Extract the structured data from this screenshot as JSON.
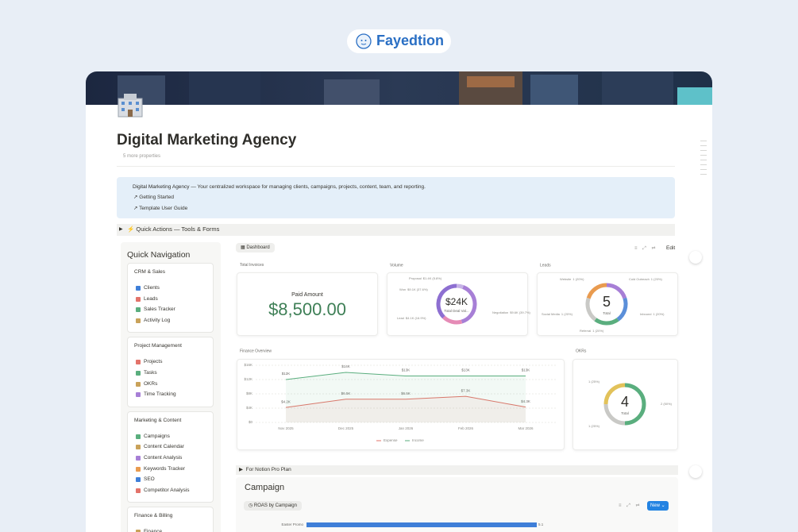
{
  "brand": "Fayedtion",
  "page": {
    "title": "Digital Marketing Agency",
    "properties": "5 more properties"
  },
  "callout": {
    "title": "Digital Marketing Agency",
    "description": "— Your centralized workspace for managing clients, campaigns, projects, content, team, and reporting.",
    "links": [
      "Getting Started",
      "Template User Guide"
    ]
  },
  "quick_actions": "⚡ Quick Actions — Tools & Forms",
  "navigation": {
    "title": "Quick Navigation",
    "groups": [
      {
        "title": "CRM & Sales",
        "items": [
          "Clients",
          "Leads",
          "Sales Tracker",
          "Activity Log"
        ]
      },
      {
        "title": "Project Management",
        "items": [
          "Projects",
          "Tasks",
          "OKRs",
          "Time Tracking"
        ]
      },
      {
        "title": "Marketing & Content",
        "items": [
          "Campaigns",
          "Content Calendar",
          "Content Analysis",
          "Keywords Tracker",
          "SEO",
          "Competitor Analysis"
        ]
      },
      {
        "title": "Finance & Billing",
        "items": [
          "Finance"
        ]
      }
    ]
  },
  "dashboard": {
    "tab": "Dashboard",
    "edit": "Edit",
    "total_invoices": {
      "title": "Total Invoices",
      "caption": "Paid Amount",
      "amount": "$8,500.00"
    }
  },
  "pro_toggle": "For Notion Pro Plan",
  "campaign": {
    "title": "Campaign",
    "tab": "ROAS by Campaign",
    "new_button": "New"
  },
  "chart_data": [
    {
      "type": "donut",
      "title": "Volume",
      "center_label": "$24K",
      "center_caption": "Total Deal Val...",
      "categories": [
        "Proposal",
        "Negotiation",
        "Lead",
        "Won"
      ],
      "values": [
        1400,
        9600,
        4100,
        9100
      ],
      "value_labels": [
        "$1.4K (5.8%)",
        "$9.6K (39.7%)",
        "$4.1K (16.9%)",
        "$9.1K (37.6%)"
      ],
      "colors": [
        "#c6b3e6",
        "#a77fd6",
        "#e58bb6",
        "#8d6fd1"
      ]
    },
    {
      "type": "donut",
      "title": "Leads",
      "center_label": "5",
      "center_caption": "Total",
      "categories": [
        "Website",
        "Cold Outreach",
        "Inbound",
        "Referral",
        "Social Media"
      ],
      "values": [
        1,
        1,
        1,
        1,
        1
      ],
      "value_labels": [
        "1 (20%)",
        "1 (20%)",
        "1 (20%)",
        "1 (20%)",
        "1 (20%)"
      ],
      "colors": [
        "#a77fd6",
        "#5b8fd9",
        "#5aae7e",
        "#c9c9c6",
        "#e99b4f"
      ]
    },
    {
      "type": "line",
      "title": "Finance Overview",
      "categories": [
        "Nov 2025",
        "Dec 2025",
        "Jan 2026",
        "Feb 2026",
        "Mar 2026"
      ],
      "ylim": [
        0,
        16000
      ],
      "yticks": [
        {
          "value": 0,
          "label": "$0"
        },
        {
          "value": 4000,
          "label": "$4K"
        },
        {
          "value": 8000,
          "label": "$8K"
        },
        {
          "value": 12000,
          "label": "$12K"
        },
        {
          "value": 16000,
          "label": "$16K"
        }
      ],
      "grid": true,
      "series": [
        {
          "name": "Expense",
          "color": "#e3736a",
          "values": [
            4200,
            6500,
            6500,
            7300,
            4300
          ],
          "value_labels": [
            "$4.2K",
            "$6.5K",
            "$6.5K",
            "$7.3K",
            "$4.3K"
          ]
        },
        {
          "name": "Income",
          "color": "#5aae7e",
          "values": [
            12000,
            14000,
            13000,
            13000,
            13000
          ],
          "value_labels": [
            "$12K",
            "$14K",
            "$13K",
            "$13K",
            "$13K"
          ]
        }
      ]
    },
    {
      "type": "donut",
      "title": "OKRs",
      "center_label": "4",
      "center_caption": "Total",
      "values": [
        2,
        1,
        1
      ],
      "value_labels": [
        "2 (50%)",
        "1 (25%)",
        "1 (25%)"
      ],
      "colors": [
        "#5aae7e",
        "#c9c9c6",
        "#e2c25a"
      ]
    },
    {
      "type": "bar",
      "categories": [
        "Easter Promo"
      ],
      "values": [
        5.1
      ],
      "color": "#3f7fd8"
    }
  ]
}
